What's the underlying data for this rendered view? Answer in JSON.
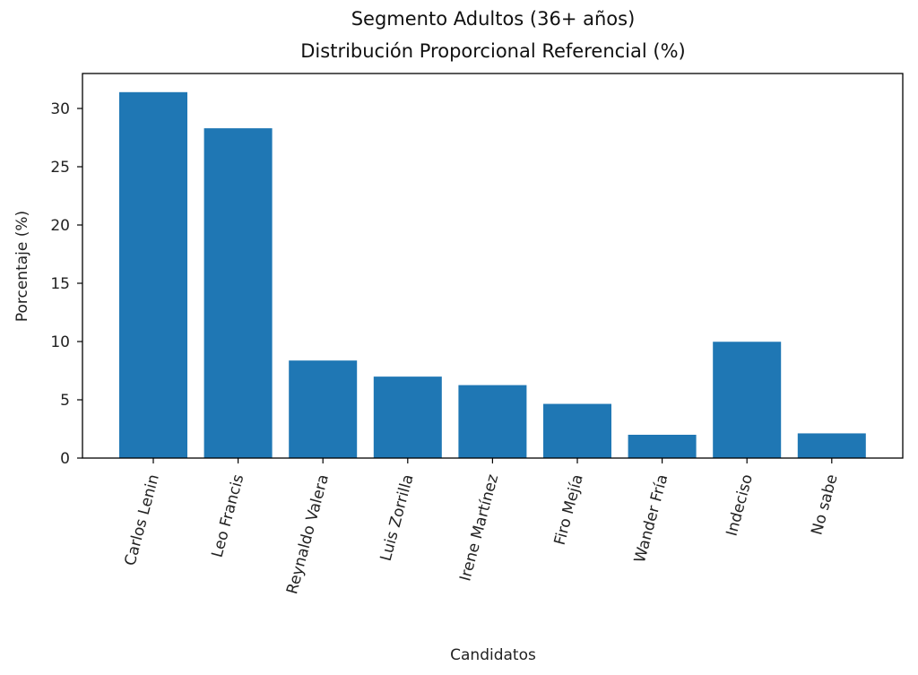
{
  "chart_data": {
    "type": "bar",
    "title": "Segmento Adultos (36+ años)",
    "subtitle": "Distribución Proporcional Referencial (%)",
    "xlabel": "Candidatos",
    "ylabel": "Porcentaje (%)",
    "categories": [
      "Carlos Lenin",
      "Leo Francis",
      "Reynaldo Valera",
      "Luis Zorrilla",
      "Irene Martínez",
      "Firo Mejía",
      "Wander Fría",
      "Indeciso",
      "No sabe"
    ],
    "values": [
      31.4,
      28.3,
      8.37,
      6.99,
      6.26,
      4.65,
      2.0,
      9.98,
      2.12
    ],
    "ylim": [
      0,
      33
    ],
    "yticks": [
      0,
      5,
      10,
      15,
      20,
      25,
      30
    ],
    "grid": false,
    "bar_color": "#1f77b4"
  }
}
